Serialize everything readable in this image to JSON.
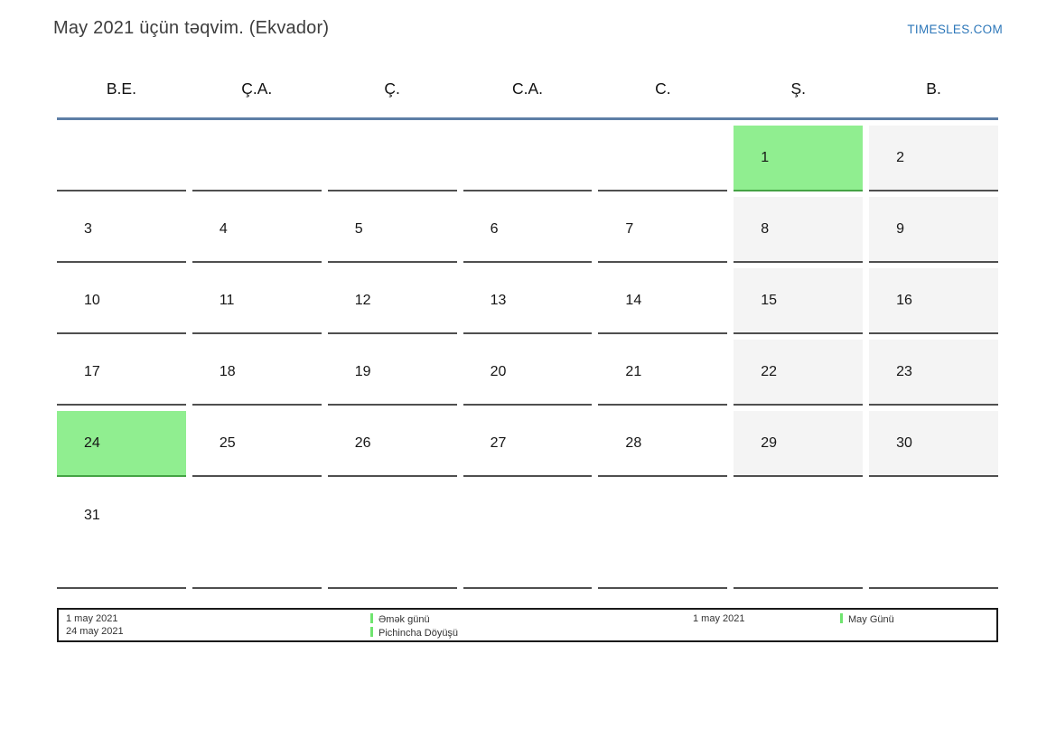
{
  "header": {
    "title": "May 2021 üçün təqvim. (Ekvador)",
    "site": "TIMESLES.COM"
  },
  "weekdays": [
    "B.E.",
    "Ç.A.",
    "Ç.",
    "C.A.",
    "C.",
    "Ş.",
    "B."
  ],
  "weeks": [
    [
      {
        "day": "",
        "type": "empty"
      },
      {
        "day": "",
        "type": "empty"
      },
      {
        "day": "",
        "type": "empty"
      },
      {
        "day": "",
        "type": "empty"
      },
      {
        "day": "",
        "type": "empty"
      },
      {
        "day": "1",
        "type": "holiday"
      },
      {
        "day": "2",
        "type": "weekend"
      }
    ],
    [
      {
        "day": "3",
        "type": "normal"
      },
      {
        "day": "4",
        "type": "normal"
      },
      {
        "day": "5",
        "type": "normal"
      },
      {
        "day": "6",
        "type": "normal"
      },
      {
        "day": "7",
        "type": "normal"
      },
      {
        "day": "8",
        "type": "weekend"
      },
      {
        "day": "9",
        "type": "weekend"
      }
    ],
    [
      {
        "day": "10",
        "type": "normal"
      },
      {
        "day": "11",
        "type": "normal"
      },
      {
        "day": "12",
        "type": "normal"
      },
      {
        "day": "13",
        "type": "normal"
      },
      {
        "day": "14",
        "type": "normal"
      },
      {
        "day": "15",
        "type": "weekend"
      },
      {
        "day": "16",
        "type": "weekend"
      }
    ],
    [
      {
        "day": "17",
        "type": "normal"
      },
      {
        "day": "18",
        "type": "normal"
      },
      {
        "day": "19",
        "type": "normal"
      },
      {
        "day": "20",
        "type": "normal"
      },
      {
        "day": "21",
        "type": "normal"
      },
      {
        "day": "22",
        "type": "weekend"
      },
      {
        "day": "23",
        "type": "weekend"
      }
    ],
    [
      {
        "day": "24",
        "type": "holiday"
      },
      {
        "day": "25",
        "type": "normal"
      },
      {
        "day": "26",
        "type": "normal"
      },
      {
        "day": "27",
        "type": "normal"
      },
      {
        "day": "28",
        "type": "normal"
      },
      {
        "day": "29",
        "type": "weekend"
      },
      {
        "day": "30",
        "type": "weekend"
      }
    ],
    [
      {
        "day": "31",
        "type": "normal",
        "tall": true
      },
      {
        "day": "",
        "type": "empty"
      },
      {
        "day": "",
        "type": "empty"
      },
      {
        "day": "",
        "type": "empty"
      },
      {
        "day": "",
        "type": "empty"
      },
      {
        "day": "",
        "type": "empty"
      },
      {
        "day": "",
        "type": "empty"
      }
    ]
  ],
  "legend": {
    "dates_left": [
      "1 may 2021",
      "24 may 2021"
    ],
    "events_left": [
      "Əmək günü",
      "Pichincha Döyüşü"
    ],
    "date_right": "1 may 2021",
    "event_right": "May Günü"
  },
  "colors": {
    "holiday": "#90ee90",
    "holiday_border": "#44a344",
    "weekend": "#f4f4f4",
    "header_rule": "#5d7ea6",
    "site_link": "#2d77b9",
    "legend_marker": "#6fe46f"
  }
}
